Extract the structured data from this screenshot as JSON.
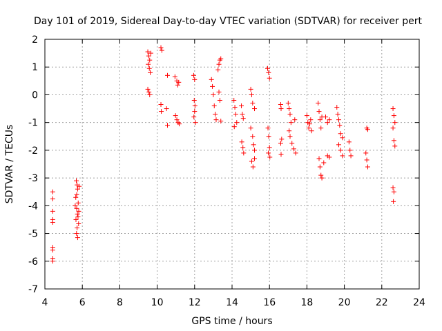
{
  "chart_data": {
    "type": "scatter",
    "title": "Day 101 of 2019, Sidereal Day-to-day VTEC variation (SDTVAR) for receiver pert",
    "xlabel": "GPS time / hours",
    "ylabel": "SDTVAR / TECUs",
    "xlim": [
      4,
      24
    ],
    "ylim": [
      -7,
      2
    ],
    "xticks": [
      "4",
      "6",
      "8",
      "10",
      "12",
      "14",
      "16",
      "18",
      "20",
      "22",
      "24"
    ],
    "yticks": [
      "2",
      "1",
      "0",
      "-1",
      "-2",
      "-3",
      "-4",
      "-5",
      "-6",
      "-7"
    ],
    "grid": true,
    "marker": "+",
    "color": "#ff0000",
    "series": [
      {
        "name": "SDTVAR",
        "points": [
          [
            4.42,
            -3.5
          ],
          [
            4.42,
            -3.75
          ],
          [
            4.42,
            -4.2
          ],
          [
            4.42,
            -4.5
          ],
          [
            4.42,
            -4.6
          ],
          [
            4.42,
            -5.5
          ],
          [
            4.42,
            -5.6
          ],
          [
            4.42,
            -5.9
          ],
          [
            4.42,
            -6.0
          ],
          [
            5.68,
            -3.1
          ],
          [
            5.72,
            -3.25
          ],
          [
            5.75,
            -3.4
          ],
          [
            5.65,
            -3.7
          ],
          [
            5.78,
            -3.9
          ],
          [
            5.7,
            -4.1
          ],
          [
            5.74,
            -4.3
          ],
          [
            5.66,
            -4.5
          ],
          [
            5.8,
            -4.65
          ],
          [
            5.72,
            -4.8
          ],
          [
            5.69,
            -5.0
          ],
          [
            5.75,
            -5.15
          ],
          [
            5.83,
            -3.3
          ],
          [
            5.62,
            -4.0
          ],
          [
            5.77,
            -4.4
          ],
          [
            5.7,
            -3.6
          ],
          [
            5.81,
            -4.2
          ],
          [
            9.5,
            1.55
          ],
          [
            9.55,
            1.4
          ],
          [
            9.6,
            1.25
          ],
          [
            9.52,
            1.1
          ],
          [
            9.58,
            0.95
          ],
          [
            9.63,
            0.8
          ],
          [
            9.5,
            0.2
          ],
          [
            9.56,
            0.1
          ],
          [
            9.6,
            0.0
          ],
          [
            9.66,
            1.5
          ],
          [
            10.2,
            1.7
          ],
          [
            10.25,
            1.6
          ],
          [
            10.2,
            -0.35
          ],
          [
            10.22,
            -0.6
          ],
          [
            10.55,
            0.7
          ],
          [
            10.5,
            -0.5
          ],
          [
            10.55,
            -1.1
          ],
          [
            10.95,
            0.65
          ],
          [
            11.05,
            0.5
          ],
          [
            11.1,
            0.35
          ],
          [
            11.15,
            0.45
          ],
          [
            10.98,
            -0.75
          ],
          [
            11.05,
            -0.9
          ],
          [
            11.12,
            -1.0
          ],
          [
            11.18,
            -1.05
          ],
          [
            11.95,
            0.7
          ],
          [
            12.0,
            0.55
          ],
          [
            11.98,
            -0.2
          ],
          [
            12.02,
            -0.4
          ],
          [
            12.0,
            -0.6
          ],
          [
            11.96,
            -0.8
          ],
          [
            12.04,
            -1.0
          ],
          [
            12.9,
            0.55
          ],
          [
            12.95,
            0.3
          ],
          [
            13.0,
            0.0
          ],
          [
            13.05,
            -0.4
          ],
          [
            13.1,
            -0.7
          ],
          [
            13.15,
            -0.9
          ],
          [
            13.25,
            0.9
          ],
          [
            13.3,
            1.1
          ],
          [
            13.35,
            1.25
          ],
          [
            13.4,
            1.3
          ],
          [
            13.3,
            0.1
          ],
          [
            13.35,
            -0.2
          ],
          [
            13.4,
            -0.95
          ],
          [
            14.1,
            -0.2
          ],
          [
            14.15,
            -0.45
          ],
          [
            14.2,
            -0.7
          ],
          [
            14.25,
            -1.0
          ],
          [
            14.12,
            -1.15
          ],
          [
            14.5,
            -0.4
          ],
          [
            14.55,
            -0.7
          ],
          [
            14.6,
            -0.85
          ],
          [
            14.52,
            -1.7
          ],
          [
            14.58,
            -1.9
          ],
          [
            14.62,
            -2.1
          ],
          [
            15.0,
            0.2
          ],
          [
            15.05,
            0.0
          ],
          [
            15.1,
            -0.3
          ],
          [
            15.2,
            -0.5
          ],
          [
            15.0,
            -1.2
          ],
          [
            15.1,
            -1.5
          ],
          [
            15.15,
            -1.8
          ],
          [
            15.2,
            -2.0
          ],
          [
            15.05,
            -2.4
          ],
          [
            15.12,
            -2.6
          ],
          [
            15.2,
            -2.3
          ],
          [
            15.9,
            0.95
          ],
          [
            15.95,
            0.8
          ],
          [
            16.0,
            0.6
          ],
          [
            15.92,
            -1.2
          ],
          [
            15.96,
            -1.5
          ],
          [
            16.0,
            -1.9
          ],
          [
            15.94,
            -2.1
          ],
          [
            16.02,
            -2.25
          ],
          [
            16.6,
            -0.35
          ],
          [
            16.62,
            -0.5
          ],
          [
            16.65,
            -1.6
          ],
          [
            16.6,
            -1.75
          ],
          [
            16.62,
            -2.15
          ],
          [
            17.0,
            -0.3
          ],
          [
            17.05,
            -0.5
          ],
          [
            17.1,
            -0.7
          ],
          [
            17.15,
            -1.0
          ],
          [
            17.05,
            -1.3
          ],
          [
            17.1,
            -1.5
          ],
          [
            17.2,
            -1.75
          ],
          [
            17.3,
            -1.95
          ],
          [
            17.4,
            -2.1
          ],
          [
            17.35,
            -0.9
          ],
          [
            18.0,
            -0.75
          ],
          [
            18.05,
            -1.0
          ],
          [
            18.1,
            -1.2
          ],
          [
            18.15,
            -1.05
          ],
          [
            18.2,
            -0.9
          ],
          [
            18.25,
            -1.3
          ],
          [
            18.6,
            -0.3
          ],
          [
            18.65,
            -0.6
          ],
          [
            18.7,
            -0.9
          ],
          [
            18.75,
            -1.2
          ],
          [
            18.8,
            -0.8
          ],
          [
            18.65,
            -2.3
          ],
          [
            18.7,
            -2.6
          ],
          [
            18.75,
            -2.9
          ],
          [
            18.8,
            -3.0
          ],
          [
            18.9,
            -2.45
          ],
          [
            19.0,
            -0.8
          ],
          [
            19.1,
            -1.0
          ],
          [
            19.2,
            -0.9
          ],
          [
            19.1,
            -2.2
          ],
          [
            19.2,
            -2.25
          ],
          [
            19.6,
            -0.45
          ],
          [
            19.65,
            -0.7
          ],
          [
            19.7,
            -0.9
          ],
          [
            19.75,
            -1.1
          ],
          [
            19.8,
            -1.4
          ],
          [
            19.9,
            -1.55
          ],
          [
            19.7,
            -1.8
          ],
          [
            19.8,
            -2.0
          ],
          [
            19.9,
            -2.2
          ],
          [
            20.25,
            -1.7
          ],
          [
            20.3,
            -2.0
          ],
          [
            20.35,
            -2.2
          ],
          [
            21.2,
            -1.2
          ],
          [
            21.25,
            -1.25
          ],
          [
            21.15,
            -2.1
          ],
          [
            21.2,
            -2.35
          ],
          [
            21.25,
            -2.6
          ],
          [
            22.6,
            -0.5
          ],
          [
            22.65,
            -0.75
          ],
          [
            22.7,
            -1.0
          ],
          [
            22.6,
            -1.2
          ],
          [
            22.65,
            -1.65
          ],
          [
            22.7,
            -1.85
          ],
          [
            22.6,
            -3.35
          ],
          [
            22.65,
            -3.5
          ],
          [
            22.62,
            -3.85
          ]
        ]
      }
    ]
  }
}
